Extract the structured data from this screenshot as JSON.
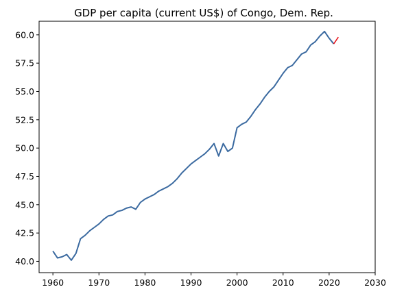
{
  "chart_data": {
    "type": "line",
    "title": "GDP per capita (current US$) of Congo, Dem. Rep.",
    "xlabel": "",
    "ylabel": "",
    "xlim": [
      1957,
      2030
    ],
    "ylim": [
      39.0,
      61.2
    ],
    "x_ticks": [
      1960,
      1970,
      1980,
      1990,
      2000,
      2010,
      2020,
      2030
    ],
    "y_ticks": [
      40.0,
      42.5,
      45.0,
      47.5,
      50.0,
      52.5,
      55.0,
      57.5,
      60.0
    ],
    "grid": false,
    "series": [
      {
        "color": "#3b6aa0",
        "x": [
          1960,
          1961,
          1962,
          1963,
          1964,
          1965,
          1966,
          1967,
          1968,
          1969,
          1970,
          1971,
          1972,
          1973,
          1974,
          1975,
          1976,
          1977,
          1978,
          1979,
          1980,
          1981,
          1982,
          1983,
          1984,
          1985,
          1986,
          1987,
          1988,
          1989,
          1990,
          1991,
          1992,
          1993,
          1994,
          1995,
          1996,
          1997,
          1998,
          1999,
          2000,
          2001,
          2002,
          2003,
          2004,
          2005,
          2006,
          2007,
          2008,
          2009,
          2010,
          2011,
          2012,
          2013,
          2014,
          2015,
          2016,
          2017,
          2018,
          2019,
          2020,
          2021
        ],
        "y": [
          40.9,
          40.3,
          40.4,
          40.6,
          40.1,
          40.7,
          42.0,
          42.3,
          42.7,
          43.0,
          43.3,
          43.7,
          44.0,
          44.1,
          44.4,
          44.5,
          44.7,
          44.8,
          44.6,
          45.2,
          45.5,
          45.7,
          45.9,
          46.2,
          46.4,
          46.6,
          46.9,
          47.3,
          47.8,
          48.2,
          48.6,
          48.9,
          49.2,
          49.5,
          49.9,
          50.4,
          49.3,
          50.4,
          49.7,
          50.0,
          51.8,
          52.1,
          52.3,
          52.8,
          53.4,
          53.9,
          54.5,
          55.0,
          55.4,
          56.0,
          56.6,
          57.1,
          57.3,
          57.8,
          58.3,
          58.5,
          59.1,
          59.4,
          59.9,
          60.3,
          59.7,
          59.2
        ],
        "lw": 2
      },
      {
        "color": "#e8141c",
        "x": [
          2021,
          2022
        ],
        "y": [
          59.2,
          59.8
        ],
        "lw": 1.6
      }
    ]
  }
}
